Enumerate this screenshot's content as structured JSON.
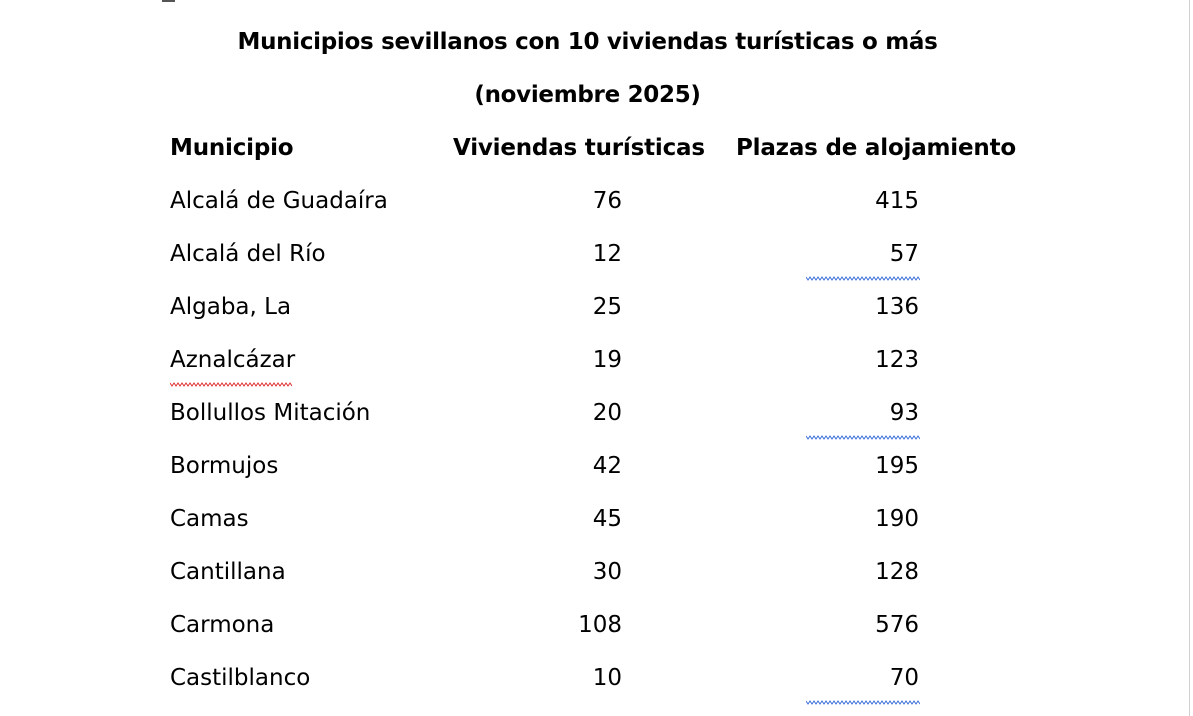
{
  "document": {
    "title_line1": "Municipios sevillanos con 10 viviendas turísticas o más",
    "title_line2": "(noviembre 2025)"
  },
  "table": {
    "headers": [
      "Municipio",
      "Viviendas turísticas",
      "Plazas de alojamiento"
    ],
    "rows": [
      {
        "municipio": "Alcalá de Guadaíra",
        "viviendas": "76",
        "plazas": "415",
        "plazas_flagged": false,
        "municipio_flagged": false
      },
      {
        "municipio": "Alcalá del Río",
        "viviendas": "12",
        "plazas": "57",
        "plazas_flagged": true,
        "municipio_flagged": false
      },
      {
        "municipio": "Algaba, La",
        "viviendas": "25",
        "plazas": "136",
        "plazas_flagged": false,
        "municipio_flagged": false
      },
      {
        "municipio": "Aznalcázar",
        "viviendas": "19",
        "plazas": "123",
        "plazas_flagged": false,
        "municipio_flagged": true
      },
      {
        "municipio": "Bollullos Mitación",
        "viviendas": "20",
        "plazas": "93",
        "plazas_flagged": true,
        "municipio_flagged": false
      },
      {
        "municipio": "Bormujos",
        "viviendas": "42",
        "plazas": "195",
        "plazas_flagged": false,
        "municipio_flagged": false
      },
      {
        "municipio": "Camas",
        "viviendas": "45",
        "plazas": "190",
        "plazas_flagged": false,
        "municipio_flagged": false
      },
      {
        "municipio": "Cantillana",
        "viviendas": "30",
        "plazas": "128",
        "plazas_flagged": false,
        "municipio_flagged": false
      },
      {
        "municipio": "Carmona",
        "viviendas": "108",
        "plazas": "576",
        "plazas_flagged": false,
        "municipio_flagged": false
      },
      {
        "municipio": "Castilblanco",
        "viviendas": "10",
        "plazas": "70",
        "plazas_flagged": true,
        "municipio_flagged": false
      }
    ]
  },
  "colors": {
    "text": "#000000",
    "grammar_squiggle": "#3a6fd8",
    "spelling_squiggle": "#e03030"
  }
}
